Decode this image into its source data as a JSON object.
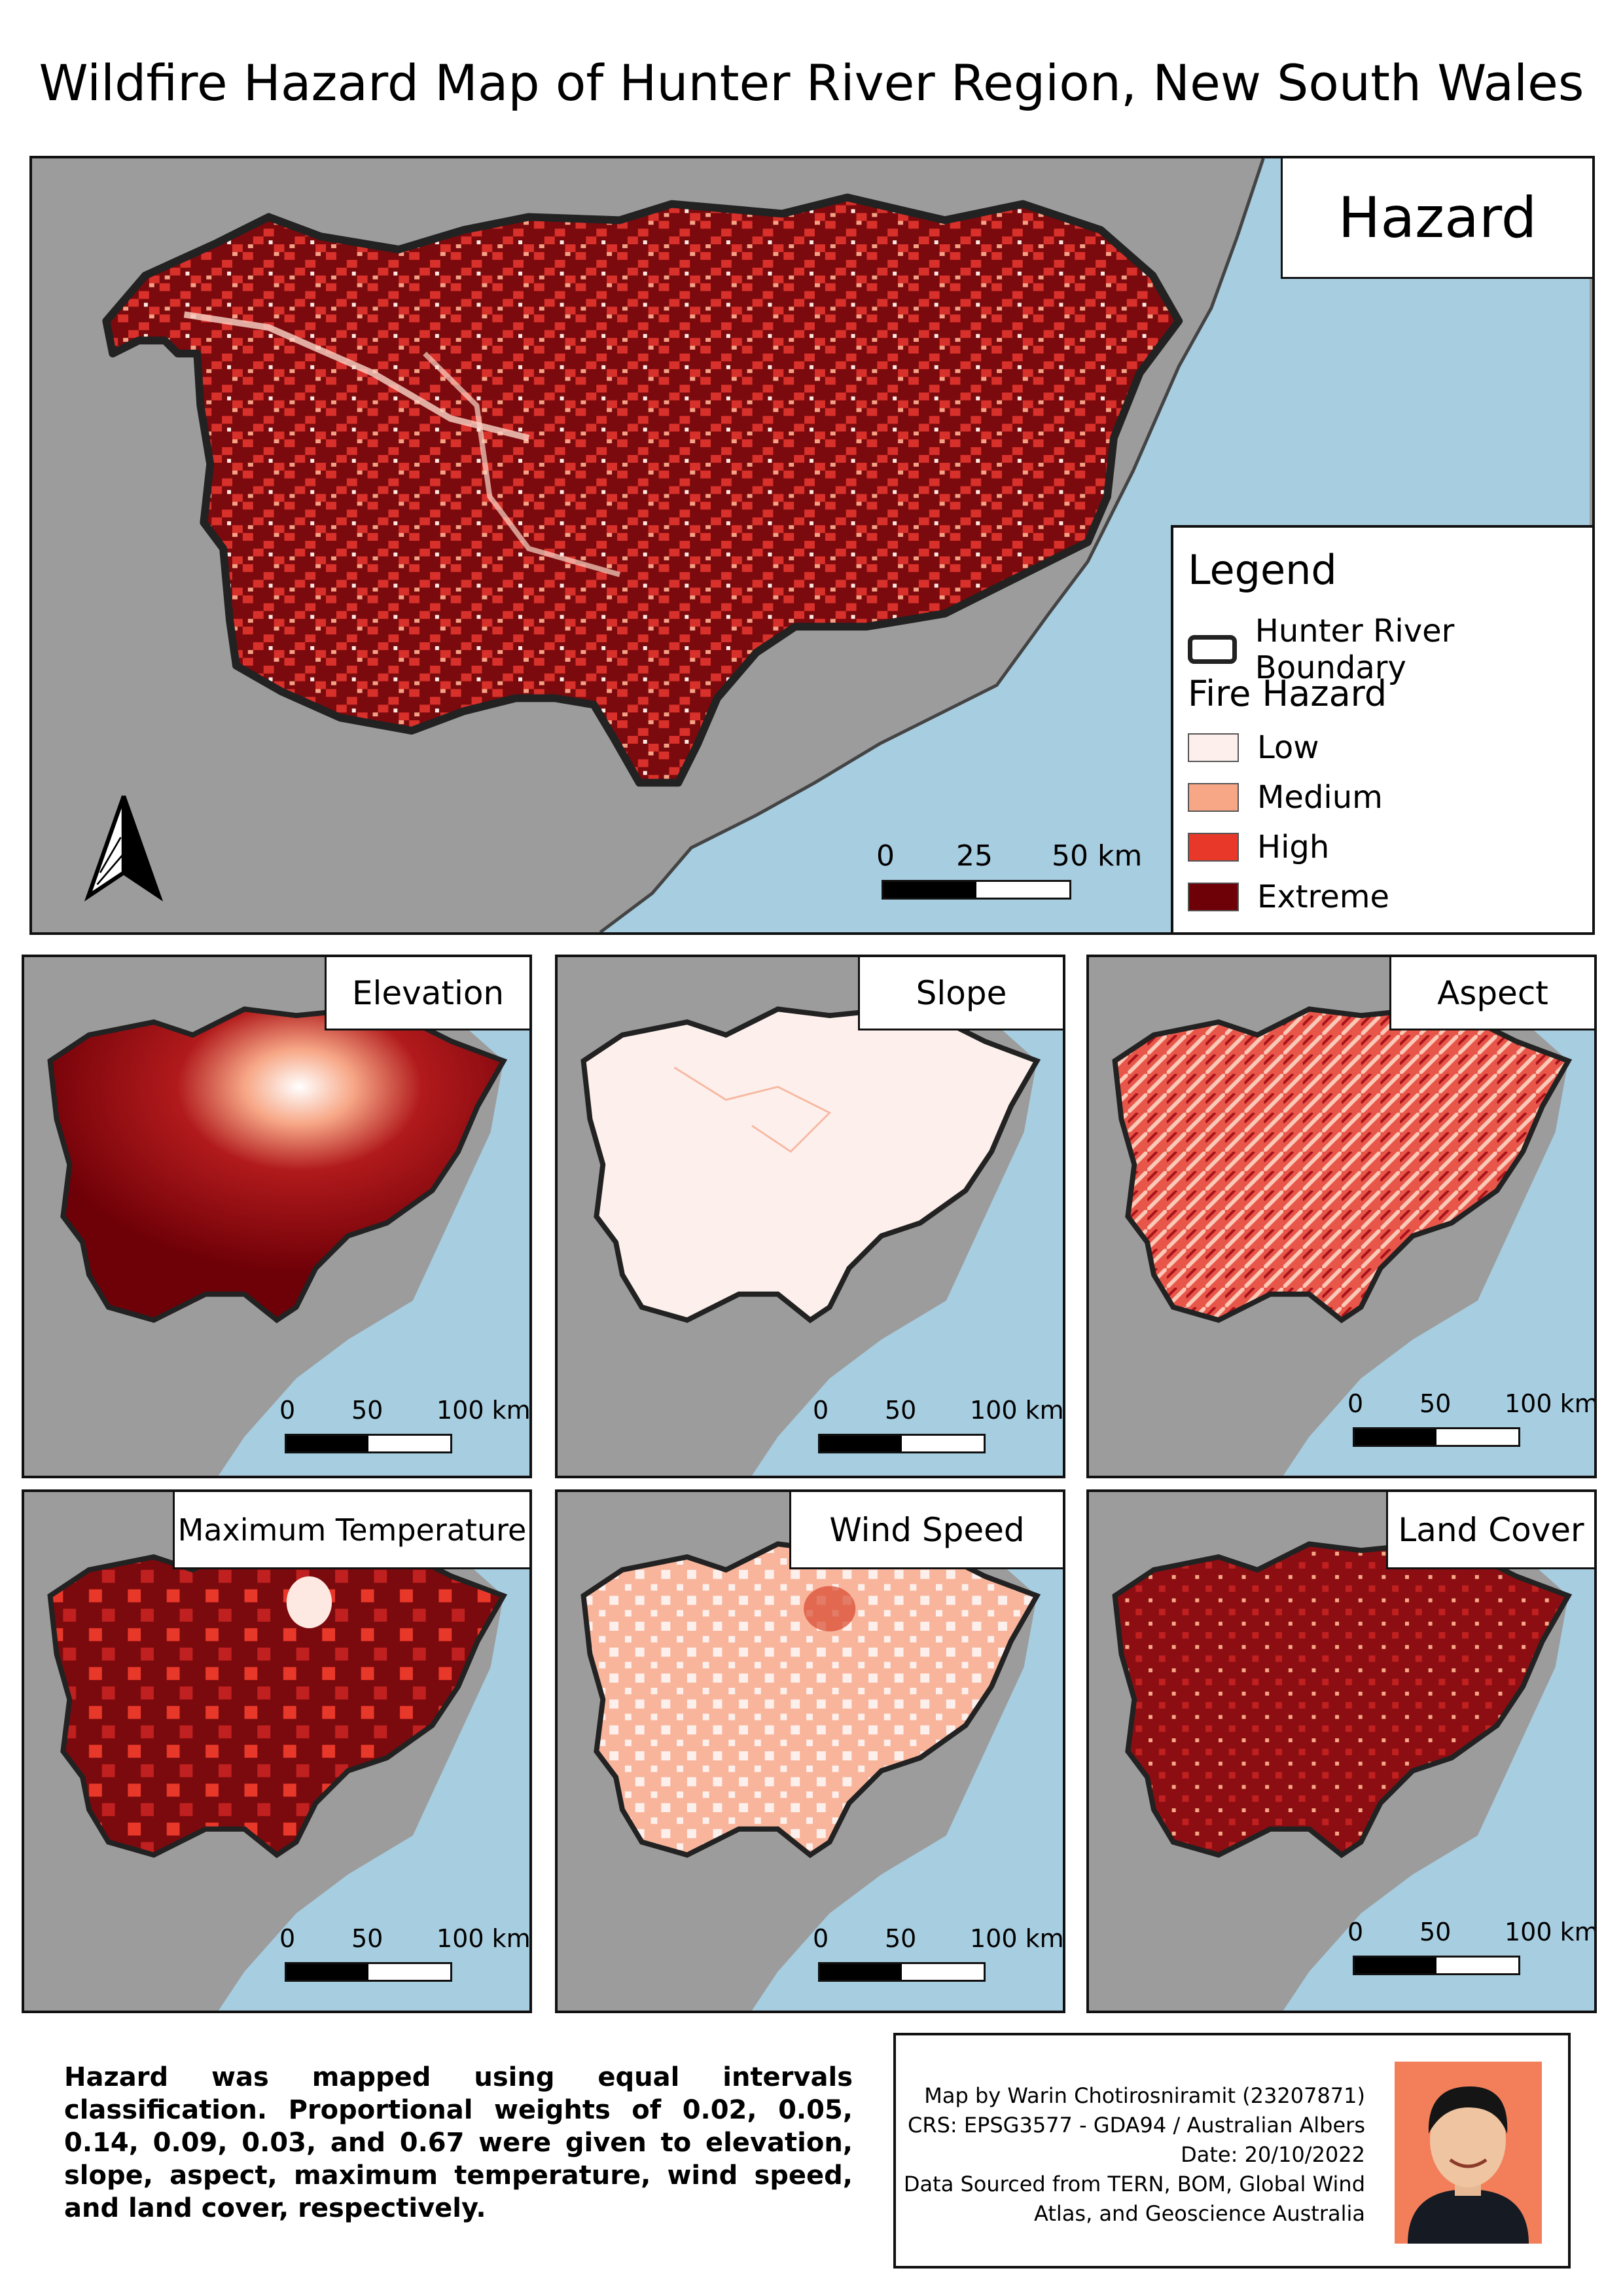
{
  "title": "Wildfire Hazard Map of Hunter River Region, New South Wales",
  "colors": {
    "land": "#9c9c9c",
    "sea": "#a7cde0",
    "boundary": "#222222",
    "low": "#fdf0ec",
    "medium": "#f7a786",
    "high": "#e8382a",
    "extreme": "#6e0007"
  },
  "main_map": {
    "label": "Hazard",
    "legend": {
      "heading": "Legend",
      "boundary_label": "Hunter River Boundary",
      "fire_hazard_heading": "Fire Hazard",
      "classes": [
        {
          "label": "Low",
          "color": "#fdf0ec"
        },
        {
          "label": "Medium",
          "color": "#f7a786"
        },
        {
          "label": "High",
          "color": "#e8382a"
        },
        {
          "label": "Extreme",
          "color": "#6e0007"
        }
      ]
    },
    "scale": {
      "labels": [
        "0",
        "25",
        "50 km"
      ]
    },
    "north_arrow": "north-arrow-icon"
  },
  "panels": [
    {
      "label": "Elevation",
      "scale": [
        "0",
        "50",
        "100 km"
      ]
    },
    {
      "label": "Slope",
      "scale": [
        "0",
        "50",
        "100 km"
      ]
    },
    {
      "label": "Aspect",
      "scale": [
        "0",
        "50",
        "100 km"
      ]
    },
    {
      "label": "Maximum Temperature",
      "scale": [
        "0",
        "50",
        "100 km"
      ]
    },
    {
      "label": "Wind Speed",
      "scale": [
        "0",
        "50",
        "100 km"
      ]
    },
    {
      "label": "Land Cover",
      "scale": [
        "0",
        "50",
        "100 km"
      ]
    }
  ],
  "notes": "Hazard was mapped using equal intervals classification. Proportional weights of 0.02, 0.05, 0.14, 0.09, 0.03, and 0.67 were given to elevation, slope, aspect, maximum temperature, wind speed, and land cover, respectively.",
  "credits": [
    "Map by Warin Chotirosniramit (23207871)",
    "CRS: EPSG3577 - GDA94 / Australian Albers",
    "Date: 20/10/2022",
    "Data Sourced from TERN, BOM, Global Wind",
    "Atlas, and Geoscience Australia"
  ]
}
